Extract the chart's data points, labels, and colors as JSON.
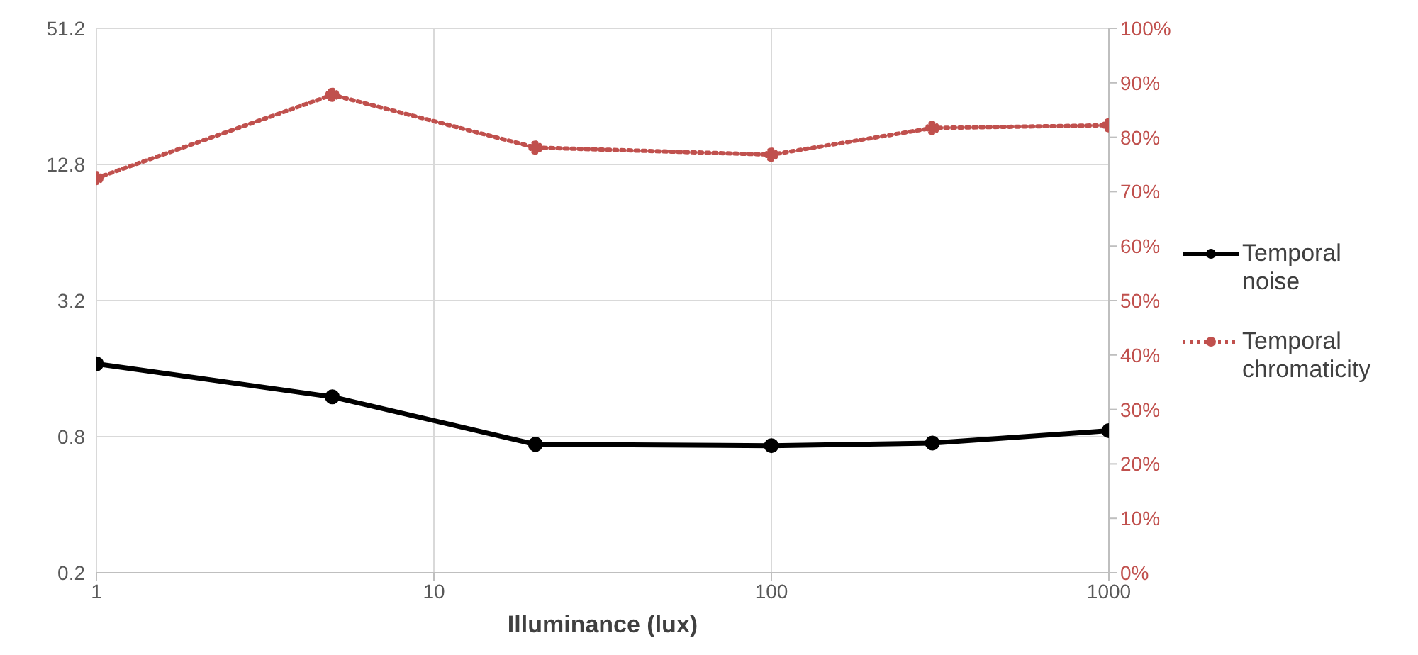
{
  "chart_data": {
    "type": "line",
    "xlabel": "Illuminance (lux)",
    "x": [
      1,
      5,
      20,
      100,
      300,
      1000
    ],
    "series": [
      {
        "name": "Temporal noise",
        "color": "#000000",
        "values": [
          1.68,
          1.2,
          0.74,
          0.73,
          0.75,
          0.85
        ],
        "line_style": "solid"
      },
      {
        "name": "Temporal chromaticity",
        "color": "#c0504d",
        "values": [
          72.5,
          87.8,
          78.1,
          76.8,
          81.7,
          82.2
        ],
        "axis": "y2",
        "line_style": "dotted"
      }
    ],
    "log": "xy",
    "xlim": [
      1,
      1000
    ],
    "xticks": [
      1,
      10,
      100,
      1000
    ],
    "ylim": [
      0.2,
      51.2
    ],
    "yticks": [
      0.2,
      0.8,
      3.2,
      12.8,
      51.2
    ],
    "y2lim": [
      0,
      100
    ],
    "y2ticks": [
      {
        "value": 0,
        "label": "0%"
      },
      {
        "value": 10,
        "label": "10%"
      },
      {
        "value": 20,
        "label": "20%"
      },
      {
        "value": 30,
        "label": "30%"
      },
      {
        "value": 40,
        "label": "40%"
      },
      {
        "value": 50,
        "label": "50%"
      },
      {
        "value": 60,
        "label": "60%"
      },
      {
        "value": 70,
        "label": "70%"
      },
      {
        "value": 80,
        "label": "80%"
      },
      {
        "value": 90,
        "label": "90%"
      },
      {
        "value": 100,
        "label": "100%"
      }
    ],
    "grid": true,
    "legend": "right",
    "marker": "circle"
  }
}
